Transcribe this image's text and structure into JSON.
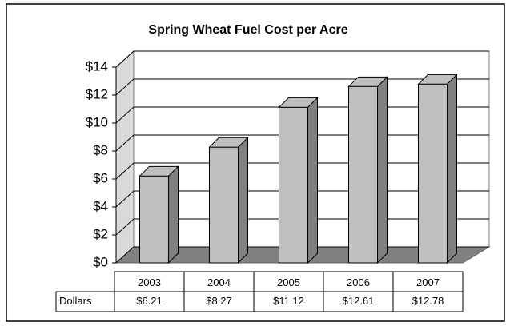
{
  "chart_data": {
    "type": "bar",
    "title": "Spring Wheat Fuel Cost per Acre",
    "categories": [
      "2003",
      "2004",
      "2005",
      "2006",
      "2007"
    ],
    "series": [
      {
        "name": "Dollars",
        "color": "#c0c0c0",
        "values": [
          6.21,
          8.27,
          11.12,
          12.61,
          12.78
        ],
        "value_labels": [
          "$6.21",
          "$8.27",
          "$11.12",
          "$12.61",
          "$12.78"
        ]
      }
    ],
    "ylim": [
      0,
      14
    ],
    "yticks": [
      {
        "value": 0,
        "label": "$0"
      },
      {
        "value": 2,
        "label": "$2"
      },
      {
        "value": 4,
        "label": "$4"
      },
      {
        "value": 6,
        "label": "$6"
      },
      {
        "value": 8,
        "label": "$8"
      },
      {
        "value": 10,
        "label": "$10"
      },
      {
        "value": 12,
        "label": "$12"
      },
      {
        "value": 14,
        "label": "$14"
      }
    ],
    "grid": true
  }
}
